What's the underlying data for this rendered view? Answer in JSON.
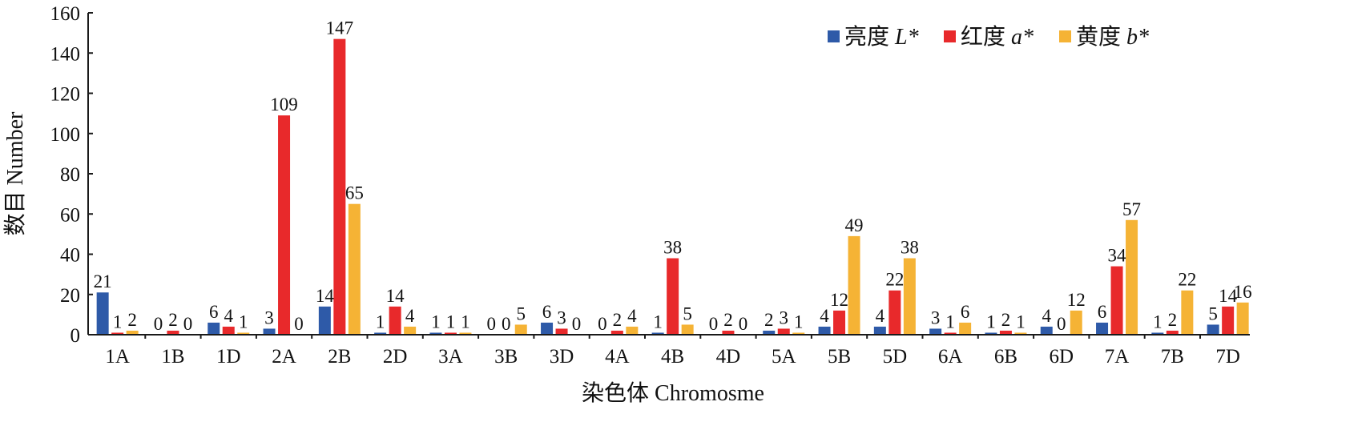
{
  "chart_data": {
    "type": "bar",
    "xlabel": "染色体 Chromosme",
    "ylabel": "数目 Number",
    "ylim": [
      0,
      160
    ],
    "yticks": [
      0,
      20,
      40,
      60,
      80,
      100,
      120,
      140,
      160
    ],
    "grid": false,
    "legend_position": "top-right",
    "categories": [
      "1A",
      "1B",
      "1D",
      "2A",
      "2B",
      "2D",
      "3A",
      "3B",
      "3D",
      "4A",
      "4B",
      "4D",
      "5A",
      "5B",
      "5D",
      "6A",
      "6B",
      "6D",
      "7A",
      "7B",
      "7D"
    ],
    "series": [
      {
        "name": "亮度 L*",
        "legend_parts": [
          "亮度 ",
          "L*"
        ],
        "color": "#2e5aa8",
        "values": [
          21,
          0,
          6,
          3,
          14,
          1,
          1,
          0,
          6,
          0,
          1,
          0,
          2,
          4,
          4,
          3,
          1,
          4,
          6,
          1,
          5
        ]
      },
      {
        "name": "红度 a*",
        "legend_parts": [
          "红度 ",
          "a*"
        ],
        "color": "#e8292b",
        "values": [
          1,
          2,
          4,
          109,
          147,
          14,
          1,
          0,
          3,
          2,
          38,
          2,
          3,
          12,
          22,
          1,
          2,
          0,
          34,
          2,
          14
        ]
      },
      {
        "name": "黄度 b*",
        "legend_parts": [
          "黄度 ",
          "b*"
        ],
        "color": "#f5b335",
        "values": [
          2,
          0,
          1,
          0,
          65,
          4,
          1,
          5,
          0,
          4,
          5,
          0,
          1,
          49,
          38,
          6,
          1,
          12,
          57,
          22,
          16
        ]
      }
    ]
  }
}
